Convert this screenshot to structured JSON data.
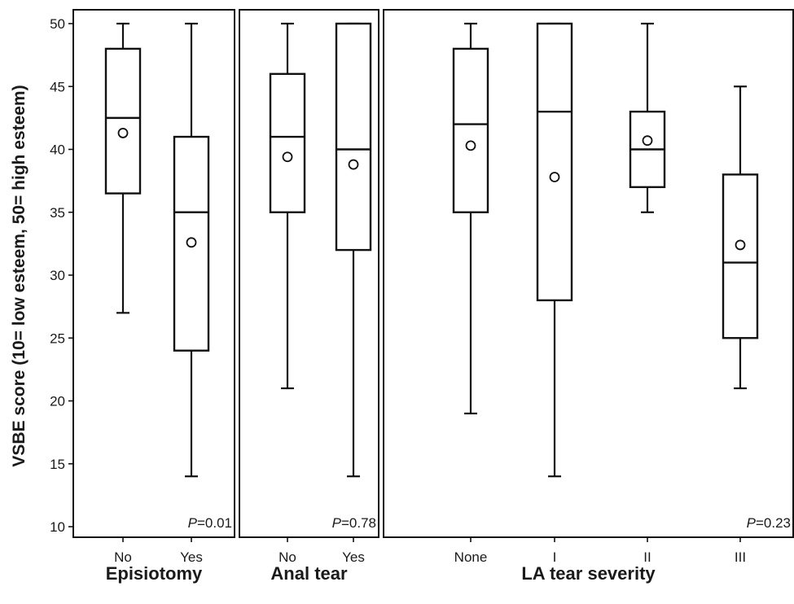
{
  "chart_data": {
    "type": "box",
    "ylabel": "VSBE score (10= low esteem, 50= high esteem)",
    "ylim": [
      10,
      50
    ],
    "yticks": [
      10,
      15,
      20,
      25,
      30,
      35,
      40,
      45,
      50
    ],
    "panels": [
      {
        "title": "Episiotomy",
        "pvalue_prefix": "P",
        "pvalue_suffix": "=0.01",
        "groups": [
          {
            "label": "No",
            "min": 27,
            "q1": 36.5,
            "median": 42.5,
            "q3": 48,
            "max": 50,
            "mean": 41.3
          },
          {
            "label": "Yes",
            "min": 14,
            "q1": 24,
            "median": 35,
            "q3": 41,
            "max": 50,
            "mean": 32.6
          }
        ]
      },
      {
        "title": "Anal tear",
        "pvalue_prefix": "P",
        "pvalue_suffix": "=0.78",
        "groups": [
          {
            "label": "No",
            "min": 21,
            "q1": 35,
            "median": 41,
            "q3": 46,
            "max": 50,
            "mean": 39.4
          },
          {
            "label": "Yes",
            "min": 14,
            "q1": 32,
            "median": 40,
            "q3": 50,
            "max": 50,
            "mean": 38.8
          }
        ]
      },
      {
        "title": "LA tear severity",
        "pvalue_prefix": "P",
        "pvalue_suffix": "=0.23",
        "groups": [
          {
            "label": "None",
            "min": 19,
            "q1": 35,
            "median": 42,
            "q3": 48,
            "max": 50,
            "mean": 40.3
          },
          {
            "label": "I",
            "min": 14,
            "q1": 28,
            "median": 43,
            "q3": 50,
            "max": 50,
            "mean": 37.8
          },
          {
            "label": "II",
            "min": 35,
            "q1": 37,
            "median": 40,
            "q3": 43,
            "max": 50,
            "mean": 40.7
          },
          {
            "label": "III",
            "min": 21,
            "q1": 25,
            "median": 31,
            "q3": 38,
            "max": 45,
            "mean": 32.4
          }
        ]
      }
    ]
  }
}
